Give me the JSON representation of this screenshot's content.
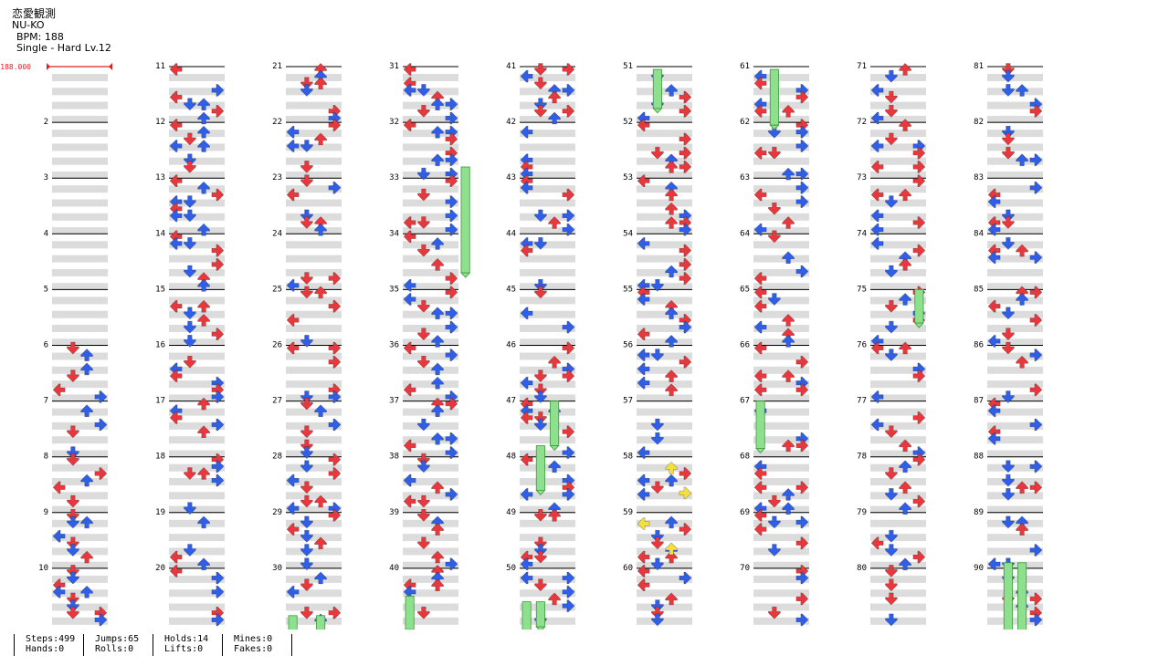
{
  "song": {
    "title": "恋愛観測",
    "artist": "NU-KO",
    "bpm_text": "BPM: 188",
    "difficulty_text": "Single - Hard  Lv.12"
  },
  "bpm_marker": "188.000",
  "measure_labels": [
    "2",
    "3",
    "4",
    "5",
    "6",
    "7",
    "8",
    "9",
    "10",
    "11",
    "12",
    "13",
    "14",
    "15",
    "16",
    "17",
    "18",
    "19",
    "20",
    "21",
    "22",
    "23",
    "24",
    "25",
    "26",
    "27",
    "28",
    "29",
    "30",
    "31",
    "32",
    "33",
    "34",
    "35",
    "36",
    "37",
    "38",
    "39",
    "40",
    "41",
    "42",
    "43",
    "44",
    "45",
    "46",
    "47",
    "48",
    "49",
    "50",
    "51",
    "52",
    "53",
    "54",
    "55",
    "56",
    "57",
    "58",
    "59",
    "60",
    "61",
    "62",
    "63",
    "64",
    "65",
    "66",
    "67",
    "68",
    "69",
    "70",
    "71",
    "72",
    "73",
    "74",
    "75",
    "76",
    "77",
    "78",
    "79",
    "80",
    "81",
    "82",
    "83",
    "84",
    "85",
    "86",
    "87",
    "88",
    "89",
    "90"
  ],
  "colors": {
    "quarter": "#e8383d",
    "eighth": "#2f5ee8",
    "sixteenth": "#f4e03c",
    "hold": "#8ee08e",
    "holdBorder": "#3a9a3a",
    "band": "#dcdcdc",
    "bpm": "#e02020"
  },
  "stats": [
    {
      "top": "Steps:499",
      "bottom": "Hands:0"
    },
    {
      "top": "Jumps:65",
      "bottom": "Rolls:0"
    },
    {
      "top": "Holds:14",
      "bottom": "Lifts:0"
    },
    {
      "top": "Mines:0",
      "bottom": "Fakes:0"
    }
  ]
}
